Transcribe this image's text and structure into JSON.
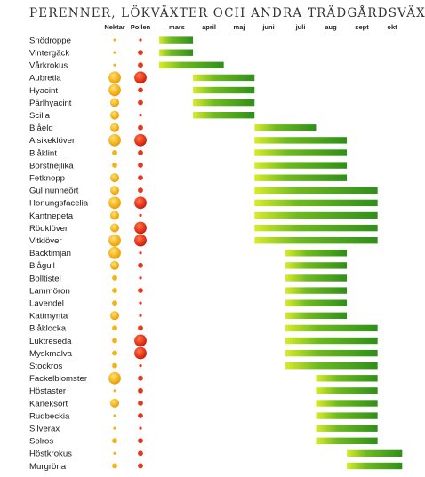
{
  "chart_data": {
    "type": "gantt",
    "title": "PERENNER, LÖKVÄXTER OCH ANDRA TRÄDGÅRDSVÄXTER",
    "columns": {
      "nectar": "Nektar",
      "pollen": "Pollen"
    },
    "months": [
      "mars",
      "april",
      "maj",
      "juni",
      "juli",
      "aug",
      "sept",
      "okt"
    ],
    "value_scale": "0 = none, 1 = tiny, 2 = small, 3 = medium, 4 = large",
    "colors": {
      "nectar": "#f2b21b",
      "pollen": "#e8361c",
      "bar_dark": "#2f8f1a",
      "bar_light": "#d8eb2a"
    },
    "plants": [
      {
        "name": "Snödroppe",
        "nectar": 1,
        "pollen": 1,
        "start": 0,
        "end": 1.1
      },
      {
        "name": "Vintergäck",
        "nectar": 1,
        "pollen": 2,
        "start": 0,
        "end": 1.1
      },
      {
        "name": "Vårkrokus",
        "nectar": 1,
        "pollen": 2,
        "start": 0,
        "end": 2.1
      },
      {
        "name": "Aubretia",
        "nectar": 4,
        "pollen": 4,
        "start": 1.1,
        "end": 3.1
      },
      {
        "name": "Hyacint",
        "nectar": 4,
        "pollen": 2,
        "start": 1.1,
        "end": 3.1
      },
      {
        "name": "Pärlhyacint",
        "nectar": 3,
        "pollen": 2,
        "start": 1.1,
        "end": 3.1
      },
      {
        "name": "Scilla",
        "nectar": 3,
        "pollen": 1,
        "start": 1.1,
        "end": 3.1
      },
      {
        "name": "Blåeld",
        "nectar": 3,
        "pollen": 2,
        "start": 3.1,
        "end": 5.1
      },
      {
        "name": "Alsikeklöver",
        "nectar": 4,
        "pollen": 4,
        "start": 3.1,
        "end": 6.1
      },
      {
        "name": "Blåklint",
        "nectar": 2,
        "pollen": 2,
        "start": 3.1,
        "end": 6.1
      },
      {
        "name": "Borstnejlika",
        "nectar": 2,
        "pollen": 2,
        "start": 3.1,
        "end": 6.1
      },
      {
        "name": "Fetknopp",
        "nectar": 3,
        "pollen": 2,
        "start": 3.1,
        "end": 6.1
      },
      {
        "name": "Gul nunneört",
        "nectar": 3,
        "pollen": 2,
        "start": 3.1,
        "end": 7.1
      },
      {
        "name": "Honungsfacelia",
        "nectar": 4,
        "pollen": 4,
        "start": 3.1,
        "end": 7.1
      },
      {
        "name": "Kantnepeta",
        "nectar": 3,
        "pollen": 1,
        "start": 3.1,
        "end": 7.1
      },
      {
        "name": "Rödklöver",
        "nectar": 3,
        "pollen": 4,
        "start": 3.1,
        "end": 7.1
      },
      {
        "name": "Vitklöver",
        "nectar": 4,
        "pollen": 4,
        "start": 3.1,
        "end": 7.1
      },
      {
        "name": "Backtimjan",
        "nectar": 4,
        "pollen": 1,
        "start": 4.1,
        "end": 6.1
      },
      {
        "name": "Blågull",
        "nectar": 3,
        "pollen": 2,
        "start": 4.1,
        "end": 6.1
      },
      {
        "name": "Bolltistel",
        "nectar": 2,
        "pollen": 1,
        "start": 4.1,
        "end": 6.1
      },
      {
        "name": "Lammöron",
        "nectar": 2,
        "pollen": 2,
        "start": 4.1,
        "end": 6.1
      },
      {
        "name": "Lavendel",
        "nectar": 2,
        "pollen": 1,
        "start": 4.1,
        "end": 6.1
      },
      {
        "name": "Kattmynta",
        "nectar": 3,
        "pollen": 1,
        "start": 4.1,
        "end": 6.1
      },
      {
        "name": "Blåklocka",
        "nectar": 2,
        "pollen": 2,
        "start": 4.1,
        "end": 7.1
      },
      {
        "name": "Luktreseda",
        "nectar": 2,
        "pollen": 4,
        "start": 4.1,
        "end": 7.1
      },
      {
        "name": "Myskmalva",
        "nectar": 2,
        "pollen": 4,
        "start": 4.1,
        "end": 7.1
      },
      {
        "name": "Stockros",
        "nectar": 2,
        "pollen": 1,
        "start": 4.1,
        "end": 7.1
      },
      {
        "name": "Fackelblomster",
        "nectar": 4,
        "pollen": 2,
        "start": 5.1,
        "end": 7.1
      },
      {
        "name": "Höstaster",
        "nectar": 1,
        "pollen": 2,
        "start": 5.1,
        "end": 7.1
      },
      {
        "name": "Kärleksört",
        "nectar": 3,
        "pollen": 2,
        "start": 5.1,
        "end": 7.1
      },
      {
        "name": "Rudbeckia",
        "nectar": 1,
        "pollen": 2,
        "start": 5.1,
        "end": 7.1
      },
      {
        "name": "Silverax",
        "nectar": 1,
        "pollen": 1,
        "start": 5.1,
        "end": 7.1
      },
      {
        "name": "Solros",
        "nectar": 2,
        "pollen": 2,
        "start": 5.1,
        "end": 7.1
      },
      {
        "name": "Höstkrokus",
        "nectar": 1,
        "pollen": 2,
        "start": 6.1,
        "end": 7.9
      },
      {
        "name": "Murgröna",
        "nectar": 2,
        "pollen": 2,
        "start": 6.1,
        "end": 7.9
      }
    ]
  }
}
